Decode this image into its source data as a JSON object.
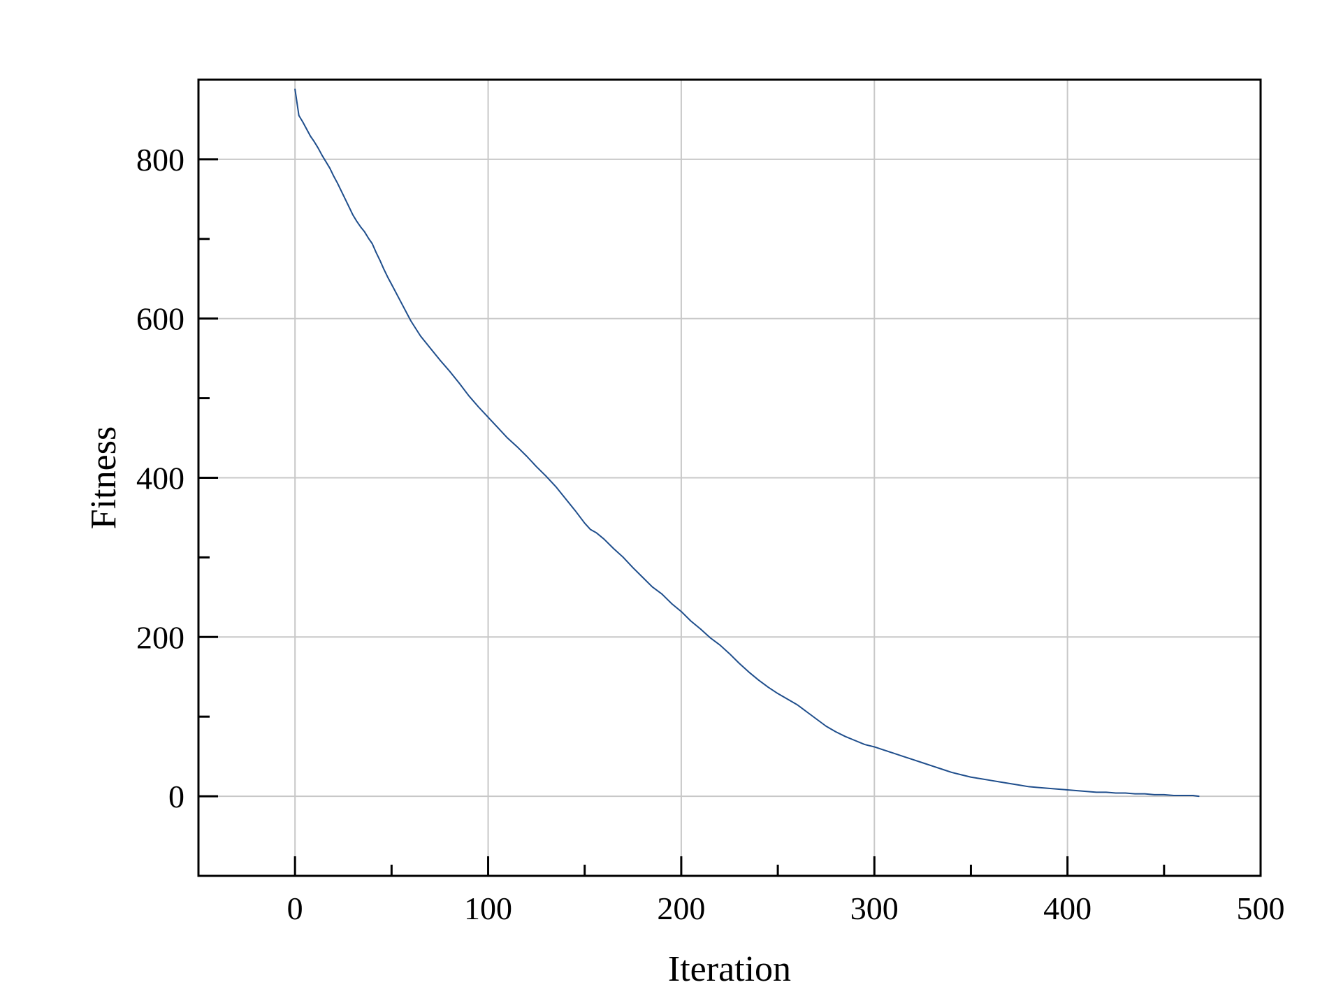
{
  "chart_data": {
    "type": "line",
    "title": "",
    "xlabel": "Iteration",
    "ylabel": "Fitness",
    "xlim": [
      -50,
      500
    ],
    "ylim": [
      -100,
      900
    ],
    "x_ticks": [
      0,
      100,
      200,
      300,
      400,
      500
    ],
    "x_tick_labels": [
      "0",
      "100",
      "200",
      "300",
      "400",
      "500"
    ],
    "x_minor_ticks": [
      50,
      150,
      250,
      350,
      450
    ],
    "y_ticks": [
      0,
      200,
      400,
      600,
      800
    ],
    "y_tick_labels": [
      "0",
      "200",
      "400",
      "600",
      "800"
    ],
    "y_minor_ticks": [
      100,
      300,
      500,
      700
    ],
    "grid": true,
    "legend": "none",
    "series": [
      {
        "color": "#1f4e8c",
        "x": [
          0,
          2,
          4,
          6,
          8,
          10,
          12,
          14,
          16,
          18,
          20,
          22,
          24,
          26,
          28,
          30,
          32,
          34,
          36,
          38,
          40,
          42,
          44,
          46,
          48,
          50,
          55,
          60,
          65,
          70,
          75,
          80,
          85,
          90,
          95,
          100,
          105,
          110,
          115,
          120,
          125,
          130,
          135,
          140,
          145,
          150,
          153,
          156,
          160,
          165,
          170,
          175,
          180,
          185,
          190,
          195,
          200,
          205,
          210,
          215,
          220,
          225,
          230,
          235,
          240,
          245,
          250,
          255,
          260,
          265,
          270,
          275,
          280,
          285,
          290,
          295,
          300,
          305,
          310,
          315,
          320,
          325,
          330,
          335,
          340,
          345,
          350,
          355,
          360,
          365,
          370,
          375,
          380,
          385,
          390,
          395,
          400,
          405,
          410,
          415,
          420,
          425,
          430,
          435,
          440,
          445,
          450,
          455,
          460,
          465,
          468
        ],
        "y": [
          888,
          855,
          847,
          838,
          829,
          822,
          814,
          805,
          797,
          789,
          779,
          770,
          760,
          750,
          740,
          730,
          722,
          715,
          709,
          701,
          694,
          683,
          673,
          662,
          652,
          643,
          620,
          597,
          578,
          563,
          548,
          534,
          519,
          503,
          489,
          476,
          463,
          450,
          439,
          427,
          414,
          402,
          389,
          374,
          359,
          343,
          335,
          331,
          323,
          311,
          300,
          287,
          275,
          263,
          254,
          242,
          232,
          220,
          210,
          199,
          190,
          179,
          167,
          156,
          146,
          137,
          129,
          122,
          115,
          106,
          97,
          88,
          81,
          75,
          70,
          65,
          62,
          58,
          54,
          50,
          46,
          42,
          38,
          34,
          30,
          27,
          24,
          22,
          20,
          18,
          16,
          14,
          12,
          11,
          10,
          9,
          8,
          7,
          6,
          5,
          5,
          4,
          4,
          3,
          3,
          2,
          2,
          1,
          1,
          1,
          0
        ]
      }
    ]
  }
}
